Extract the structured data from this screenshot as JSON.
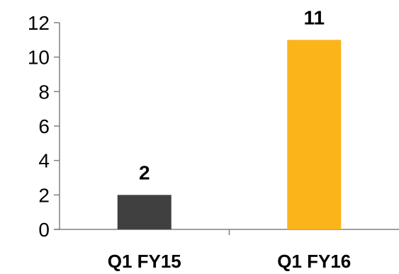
{
  "chart_data": {
    "type": "bar",
    "categories": [
      "Q1 FY15",
      "Q1 FY16"
    ],
    "values": [
      2,
      11
    ],
    "data_labels": [
      "2",
      "11"
    ],
    "colors": [
      "#404040",
      "#FBB41A"
    ],
    "title": "",
    "xlabel": "",
    "ylabel": "",
    "ylim": [
      0,
      12
    ],
    "yticks": [
      0,
      2,
      4,
      6,
      8,
      10,
      12
    ],
    "ytick_labels": [
      "0",
      "2",
      "4",
      "6",
      "8",
      "10",
      "12"
    ],
    "grid": false,
    "legend": "none"
  }
}
